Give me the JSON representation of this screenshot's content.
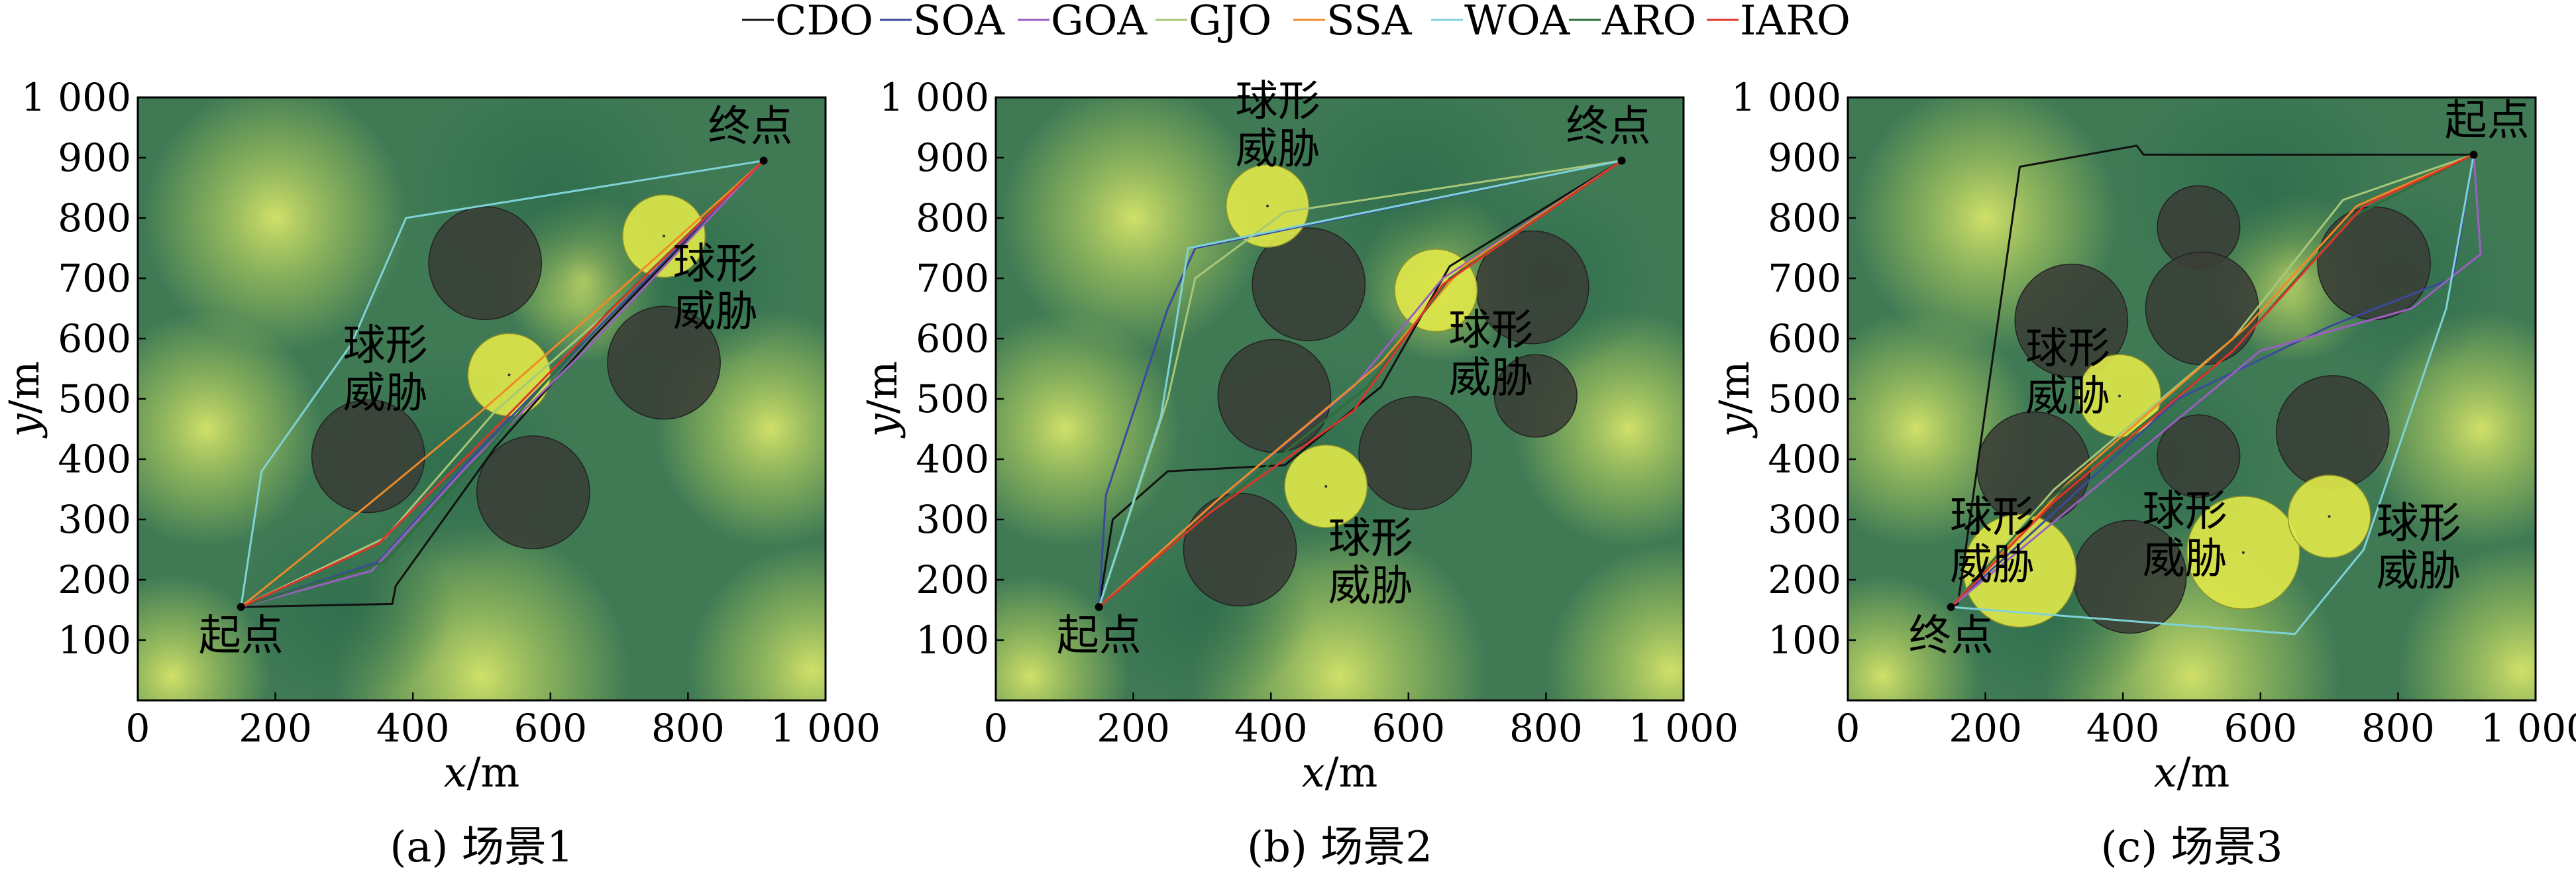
{
  "legend": [
    {
      "name": "CDO",
      "color": "#111111"
    },
    {
      "name": "SOA",
      "color": "#3b4a9c"
    },
    {
      "name": "GOA",
      "color": "#9b5fc0"
    },
    {
      "name": "GJO",
      "color": "#a8c878"
    },
    {
      "name": "SSA",
      "color": "#f08a24"
    },
    {
      "name": "WOA",
      "color": "#7fd2d6"
    },
    {
      "name": "ARO",
      "color": "#2e6e3a"
    },
    {
      "name": "IARO",
      "color": "#e0342a"
    }
  ],
  "colors": {
    "terrain_dark": "#3f7a55",
    "terrain_light": "#cfe06a",
    "obstacle_fill": "#3a3d37",
    "threat_fill": "#dde64a"
  },
  "chart_data": [
    {
      "type": "line",
      "caption": "(a) 场景1",
      "xlabel": {
        "var": "x",
        "unit": "/m"
      },
      "ylabel": {
        "var": "y",
        "unit": "/m"
      },
      "xlim": [
        0,
        1000
      ],
      "ylim": [
        0,
        1000
      ],
      "xticks": [
        "0",
        "200",
        "400",
        "600",
        "800",
        "1 000"
      ],
      "yticks": [
        "100",
        "200",
        "300",
        "400",
        "500",
        "600",
        "700",
        "800",
        "900",
        "1 000"
      ],
      "start": {
        "label": "起点",
        "x": 150,
        "y": 155
      },
      "goal": {
        "label": "终点",
        "x": 910,
        "y": 895
      },
      "obstacles": [
        {
          "x": 505,
          "y": 725,
          "r": 82
        },
        {
          "x": 335,
          "y": 405,
          "r": 82
        },
        {
          "x": 575,
          "y": 345,
          "r": 82
        },
        {
          "x": 765,
          "y": 560,
          "r": 82
        }
      ],
      "threats": [
        {
          "label": "球形威胁",
          "x": 765,
          "y": 770,
          "r": 60
        },
        {
          "label": "球形威胁",
          "x": 540,
          "y": 540,
          "r": 60
        }
      ],
      "annotations": [
        {
          "text": "球形威胁",
          "x": 840,
          "y": 700
        },
        {
          "text": "球形威胁",
          "x": 360,
          "y": 565
        }
      ],
      "series": [
        {
          "name": "CDO",
          "points": [
            [
              150,
              155
            ],
            [
              370,
              160
            ],
            [
              375,
              190
            ],
            [
              520,
              420
            ],
            [
              660,
              600
            ],
            [
              910,
              895
            ]
          ]
        },
        {
          "name": "SOA",
          "points": [
            [
              150,
              155
            ],
            [
              350,
              230
            ],
            [
              500,
              420
            ],
            [
              680,
              630
            ],
            [
              910,
              895
            ]
          ]
        },
        {
          "name": "GOA",
          "points": [
            [
              150,
              155
            ],
            [
              340,
              215
            ],
            [
              480,
              390
            ],
            [
              650,
              580
            ],
            [
              910,
              895
            ]
          ]
        },
        {
          "name": "GJO",
          "points": [
            [
              150,
              155
            ],
            [
              360,
              270
            ],
            [
              520,
              480
            ],
            [
              690,
              650
            ],
            [
              910,
              895
            ]
          ]
        },
        {
          "name": "SSA",
          "points": [
            [
              150,
              155
            ],
            [
              330,
              320
            ],
            [
              500,
              480
            ],
            [
              700,
              680
            ],
            [
              910,
              895
            ]
          ]
        },
        {
          "name": "WOA",
          "points": [
            [
              150,
              155
            ],
            [
              180,
              380
            ],
            [
              310,
              590
            ],
            [
              390,
              800
            ],
            [
              910,
              895
            ]
          ]
        },
        {
          "name": "ARO",
          "points": [
            [
              150,
              155
            ],
            [
              360,
              230
            ],
            [
              510,
              420
            ],
            [
              680,
              640
            ],
            [
              910,
              895
            ]
          ]
        },
        {
          "name": "IARO",
          "points": [
            [
              150,
              155
            ],
            [
              350,
              260
            ],
            [
              510,
              440
            ],
            [
              690,
              650
            ],
            [
              910,
              895
            ]
          ]
        }
      ]
    },
    {
      "type": "line",
      "caption": "(b) 场景2",
      "xlabel": {
        "var": "x",
        "unit": "/m"
      },
      "ylabel": {
        "var": "y",
        "unit": "/m"
      },
      "xlim": [
        0,
        1000
      ],
      "ylim": [
        0,
        1000
      ],
      "xticks": [
        "0",
        "200",
        "400",
        "600",
        "800",
        "1 000"
      ],
      "yticks": [
        "100",
        "200",
        "300",
        "400",
        "500",
        "600",
        "700",
        "800",
        "900",
        "1 000"
      ],
      "start": {
        "label": "起点",
        "x": 150,
        "y": 155
      },
      "goal": {
        "label": "终点",
        "x": 910,
        "y": 895
      },
      "obstacles": [
        {
          "x": 455,
          "y": 690,
          "r": 82
        },
        {
          "x": 405,
          "y": 505,
          "r": 82
        },
        {
          "x": 610,
          "y": 410,
          "r": 82
        },
        {
          "x": 355,
          "y": 250,
          "r": 82
        },
        {
          "x": 780,
          "y": 685,
          "r": 82
        },
        {
          "x": 785,
          "y": 505,
          "r": 60
        }
      ],
      "threats": [
        {
          "label": "球形威胁",
          "x": 395,
          "y": 820,
          "r": 60
        },
        {
          "label": "球形威胁",
          "x": 640,
          "y": 680,
          "r": 60
        },
        {
          "label": "球形威胁",
          "x": 480,
          "y": 355,
          "r": 60
        }
      ],
      "annotations": [
        {
          "text": "球形威胁",
          "x": 410,
          "y": 970
        },
        {
          "text": "球形威胁",
          "x": 720,
          "y": 590
        },
        {
          "text": "球形威胁",
          "x": 545,
          "y": 245
        }
      ],
      "series": [
        {
          "name": "CDO",
          "points": [
            [
              150,
              155
            ],
            [
              170,
              300
            ],
            [
              250,
              380
            ],
            [
              420,
              390
            ],
            [
              560,
              520
            ],
            [
              660,
              720
            ],
            [
              910,
              895
            ]
          ]
        },
        {
          "name": "SOA",
          "points": [
            [
              150,
              155
            ],
            [
              160,
              340
            ],
            [
              250,
              650
            ],
            [
              290,
              750
            ],
            [
              910,
              895
            ]
          ]
        },
        {
          "name": "GOA",
          "points": [
            [
              150,
              155
            ],
            [
              320,
              330
            ],
            [
              520,
              520
            ],
            [
              650,
              700
            ],
            [
              910,
              895
            ]
          ]
        },
        {
          "name": "GJO",
          "points": [
            [
              150,
              155
            ],
            [
              250,
              500
            ],
            [
              290,
              700
            ],
            [
              420,
              810
            ],
            [
              910,
              895
            ]
          ]
        },
        {
          "name": "SSA",
          "points": [
            [
              150,
              155
            ],
            [
              330,
              340
            ],
            [
              560,
              560
            ],
            [
              680,
              720
            ],
            [
              910,
              895
            ]
          ]
        },
        {
          "name": "WOA",
          "points": [
            [
              150,
              155
            ],
            [
              240,
              470
            ],
            [
              280,
              750
            ],
            [
              910,
              895
            ]
          ]
        },
        {
          "name": "ARO",
          "points": [
            [
              150,
              155
            ],
            [
              330,
              330
            ],
            [
              540,
              520
            ],
            [
              660,
              700
            ],
            [
              910,
              895
            ]
          ]
        },
        {
          "name": "IARO",
          "points": [
            [
              150,
              155
            ],
            [
              310,
              310
            ],
            [
              520,
              480
            ],
            [
              650,
              690
            ],
            [
              910,
              895
            ]
          ]
        }
      ]
    },
    {
      "type": "line",
      "caption": "(c) 场景3",
      "xlabel": {
        "var": "x",
        "unit": "/m"
      },
      "ylabel": {
        "var": "y",
        "unit": "/m"
      },
      "xlim": [
        0,
        1000
      ],
      "ylim": [
        0,
        1000
      ],
      "xticks": [
        "0",
        "200",
        "400",
        "600",
        "800",
        "1 000"
      ],
      "yticks": [
        "100",
        "200",
        "300",
        "400",
        "500",
        "600",
        "700",
        "800",
        "900",
        "1 000"
      ],
      "start": {
        "label": "起点",
        "x": 910,
        "y": 905
      },
      "goal": {
        "label": "终点",
        "x": 150,
        "y": 155
      },
      "obstacles": [
        {
          "x": 510,
          "y": 785,
          "r": 60
        },
        {
          "x": 325,
          "y": 630,
          "r": 82
        },
        {
          "x": 515,
          "y": 650,
          "r": 82
        },
        {
          "x": 765,
          "y": 725,
          "r": 82
        },
        {
          "x": 270,
          "y": 385,
          "r": 82
        },
        {
          "x": 510,
          "y": 405,
          "r": 60
        },
        {
          "x": 705,
          "y": 445,
          "r": 82
        },
        {
          "x": 410,
          "y": 205,
          "r": 82
        }
      ],
      "threats": [
        {
          "label": "球形威胁",
          "x": 395,
          "y": 505,
          "r": 60
        },
        {
          "label": "球形威胁",
          "x": 250,
          "y": 215,
          "r": 82
        },
        {
          "label": "球形威胁",
          "x": 575,
          "y": 245,
          "r": 82
        },
        {
          "label": "球形威胁",
          "x": 700,
          "y": 305,
          "r": 60
        }
      ],
      "annotations": [
        {
          "text": "球形威胁",
          "x": 320,
          "y": 560
        },
        {
          "text": "球形威胁",
          "x": 210,
          "y": 280
        },
        {
          "text": "球形威胁",
          "x": 490,
          "y": 290
        },
        {
          "text": "球形威胁",
          "x": 830,
          "y": 270
        }
      ],
      "series": [
        {
          "name": "CDO",
          "points": [
            [
              910,
              905
            ],
            [
              430,
              905
            ],
            [
              420,
              920
            ],
            [
              250,
              885
            ],
            [
              160,
              160
            ],
            [
              150,
              155
            ]
          ]
        },
        {
          "name": "SOA",
          "points": [
            [
              910,
              905
            ],
            [
              880,
              700
            ],
            [
              700,
              620
            ],
            [
              480,
              500
            ],
            [
              150,
              155
            ]
          ]
        },
        {
          "name": "GOA",
          "points": [
            [
              910,
              905
            ],
            [
              920,
              740
            ],
            [
              820,
              650
            ],
            [
              600,
              580
            ],
            [
              150,
              155
            ]
          ]
        },
        {
          "name": "GJO",
          "points": [
            [
              910,
              905
            ],
            [
              720,
              830
            ],
            [
              560,
              600
            ],
            [
              300,
              350
            ],
            [
              150,
              155
            ]
          ]
        },
        {
          "name": "SSA",
          "points": [
            [
              910,
              905
            ],
            [
              740,
              820
            ],
            [
              580,
              620
            ],
            [
              320,
              360
            ],
            [
              150,
              155
            ]
          ]
        },
        {
          "name": "WOA",
          "points": [
            [
              910,
              905
            ],
            [
              870,
              650
            ],
            [
              750,
              250
            ],
            [
              650,
              110
            ],
            [
              150,
              155
            ]
          ]
        },
        {
          "name": "ARO",
          "points": [
            [
              910,
              905
            ],
            [
              730,
              800
            ],
            [
              560,
              580
            ],
            [
              280,
              320
            ],
            [
              150,
              155
            ]
          ]
        },
        {
          "name": "IARO",
          "points": [
            [
              910,
              905
            ],
            [
              750,
              820
            ],
            [
              560,
              580
            ],
            [
              300,
              330
            ],
            [
              150,
              155
            ]
          ]
        }
      ]
    }
  ]
}
